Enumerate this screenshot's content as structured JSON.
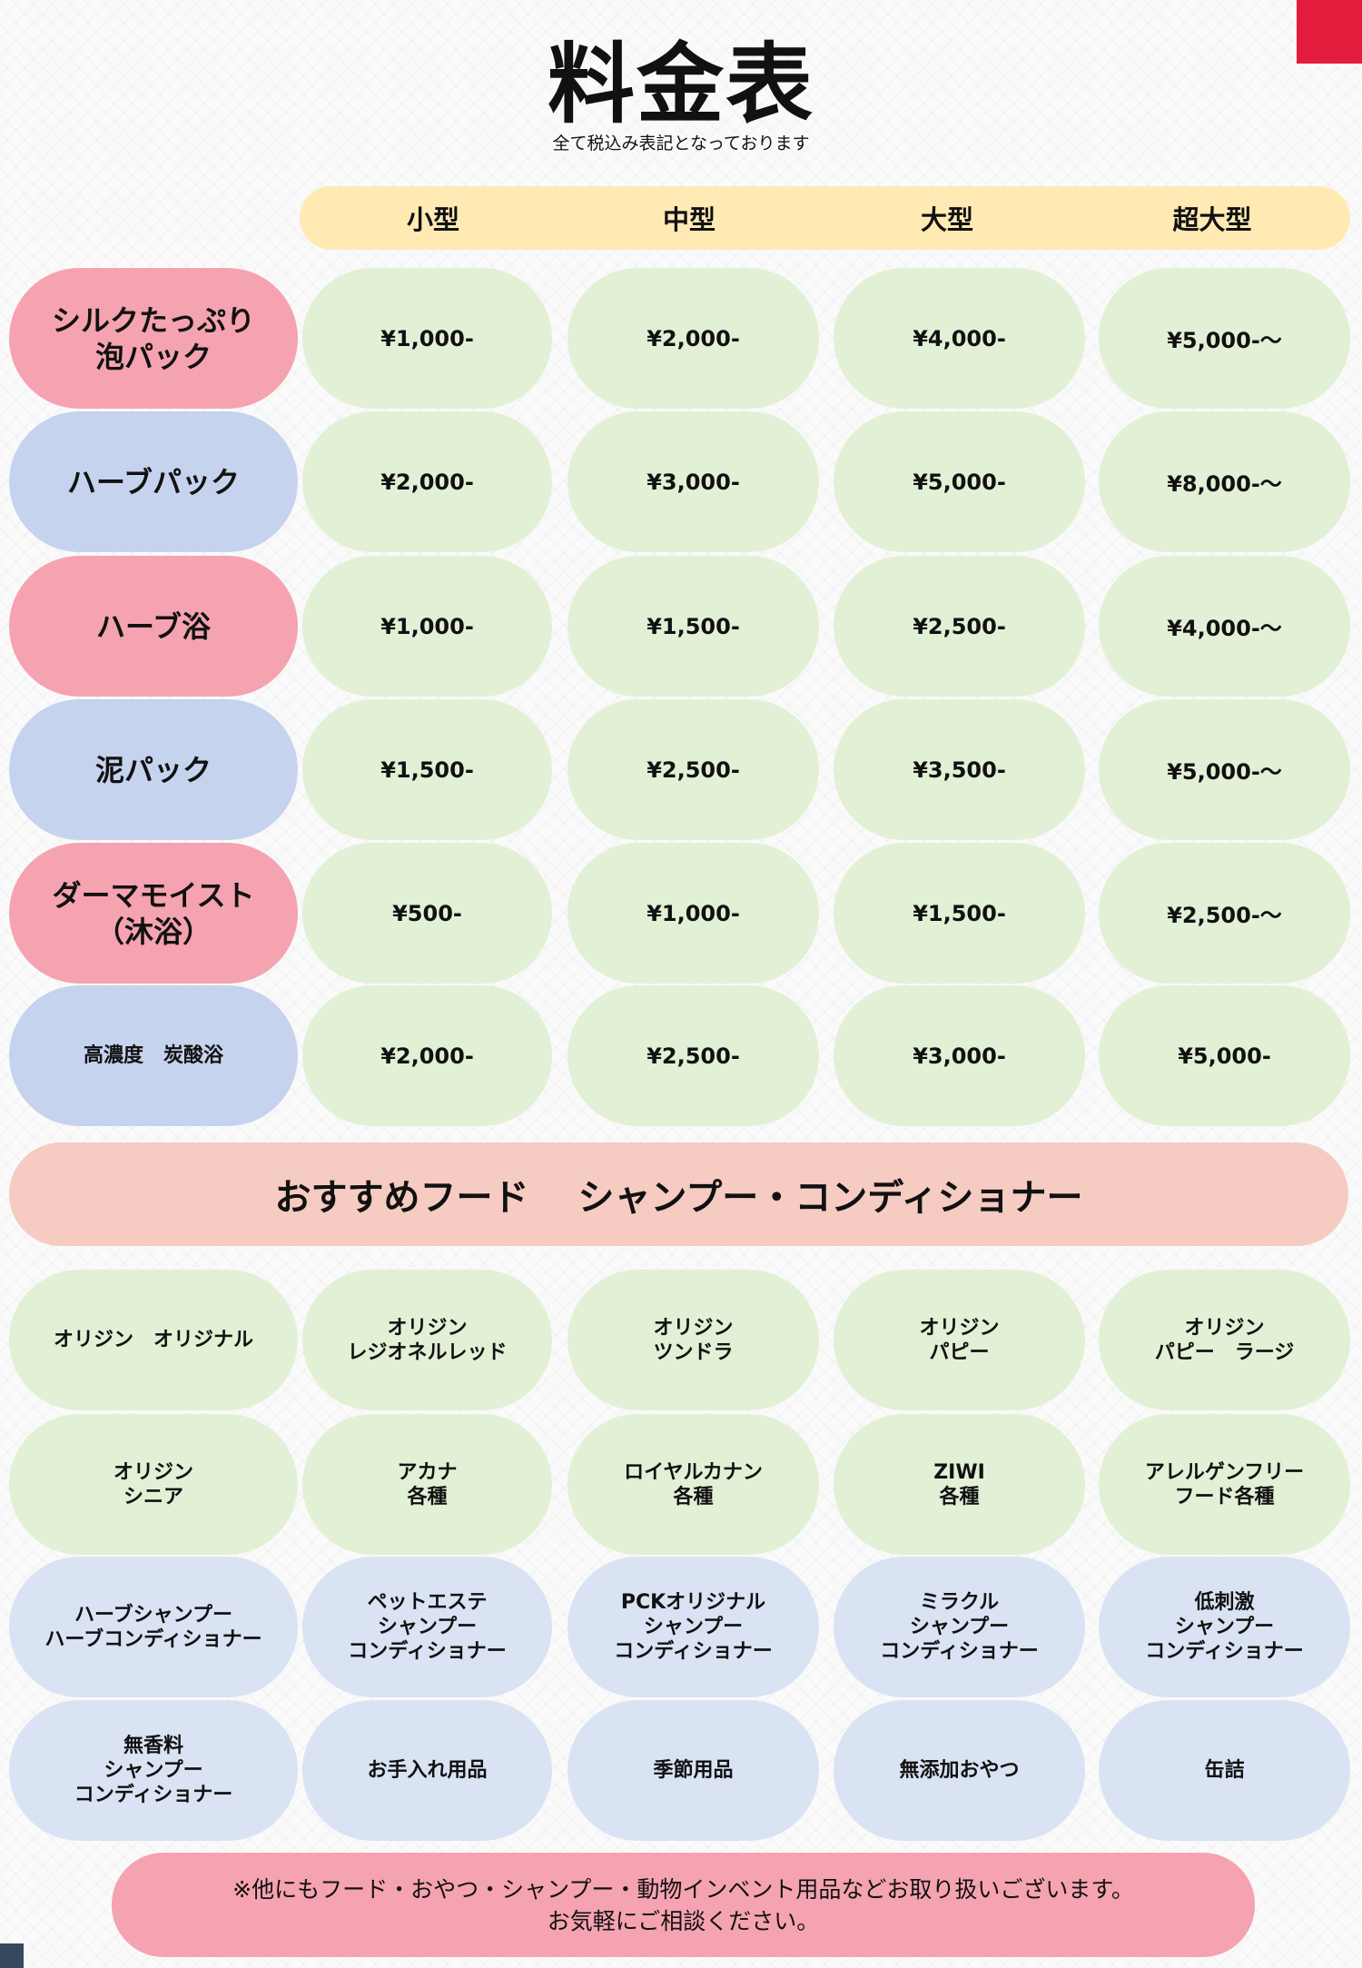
{
  "title": "料金表",
  "subtitle": "全て税込み表記となっております",
  "sizes": [
    "小型",
    "中型",
    "大型",
    "超大型"
  ],
  "services": [
    {
      "name": "シルクたっぷり\n泡パック",
      "color": "pink",
      "prices": [
        "¥1,000-",
        "¥2,000-",
        "¥4,000-",
        "¥5,000-〜"
      ]
    },
    {
      "name": "ハーブパック",
      "color": "blue",
      "prices": [
        "¥2,000-",
        "¥3,000-",
        "¥5,000-",
        "¥8,000-〜"
      ]
    },
    {
      "name": "ハーブ浴",
      "color": "pink",
      "prices": [
        "¥1,000-",
        "¥1,500-",
        "¥2,500-",
        "¥4,000-〜"
      ]
    },
    {
      "name": "泥パック",
      "color": "blue",
      "prices": [
        "¥1,500-",
        "¥2,500-",
        "¥3,500-",
        "¥5,000-〜"
      ]
    },
    {
      "name": "ダーマモイスト\n（沐浴）",
      "color": "pink",
      "prices": [
        "¥500-",
        "¥1,000-",
        "¥1,500-",
        "¥2,500-〜"
      ]
    },
    {
      "name": "高濃度　炭酸浴",
      "color": "blue",
      "prices": [
        "¥2,000-",
        "¥2,500-",
        "¥3,000-",
        "¥5,000-"
      ]
    }
  ],
  "recommend_heading": "おすすめフード　 シャンプー・コンディショナー",
  "products": [
    [
      "オリジン　オリジナル",
      "オリジン\nレジオネルレッド",
      "オリジン\nツンドラ",
      "オリジン\nパピー",
      "オリジン\nパピー　ラージ"
    ],
    [
      "オリジン\nシニア",
      "アカナ\n各種",
      "ロイヤルカナン\n各種",
      "ZIWI\n各種",
      "アレルゲンフリー\nフード各種"
    ],
    [
      "ハーブシャンプー\nハーブコンディショナー",
      "ペットエステ\nシャンプー\nコンディショナー",
      "PCKオリジナル\nシャンプー\nコンディショナー",
      "ミラクル\nシャンプー\nコンディショナー",
      "低刺激\nシャンプー\nコンディショナー"
    ],
    [
      "無香料\nシャンプー\nコンディショナー",
      "お手入れ用品",
      "季節用品",
      "無添加おやつ",
      "缶詰"
    ]
  ],
  "footer_note": [
    "※他にもフード・おやつ・シャンプー・動物インベント用品などお取り扱いございます。",
    "お気軽にご相談ください。"
  ],
  "colors": {
    "pink": "#f5a3b0",
    "blue": "#c6d3ee",
    "green": "#e2f0d6",
    "light_blue": "#d9e3f3",
    "header_yellow": "#ffeab4",
    "banner": "#f5cbc2",
    "corner_red": "#e31c3d"
  }
}
